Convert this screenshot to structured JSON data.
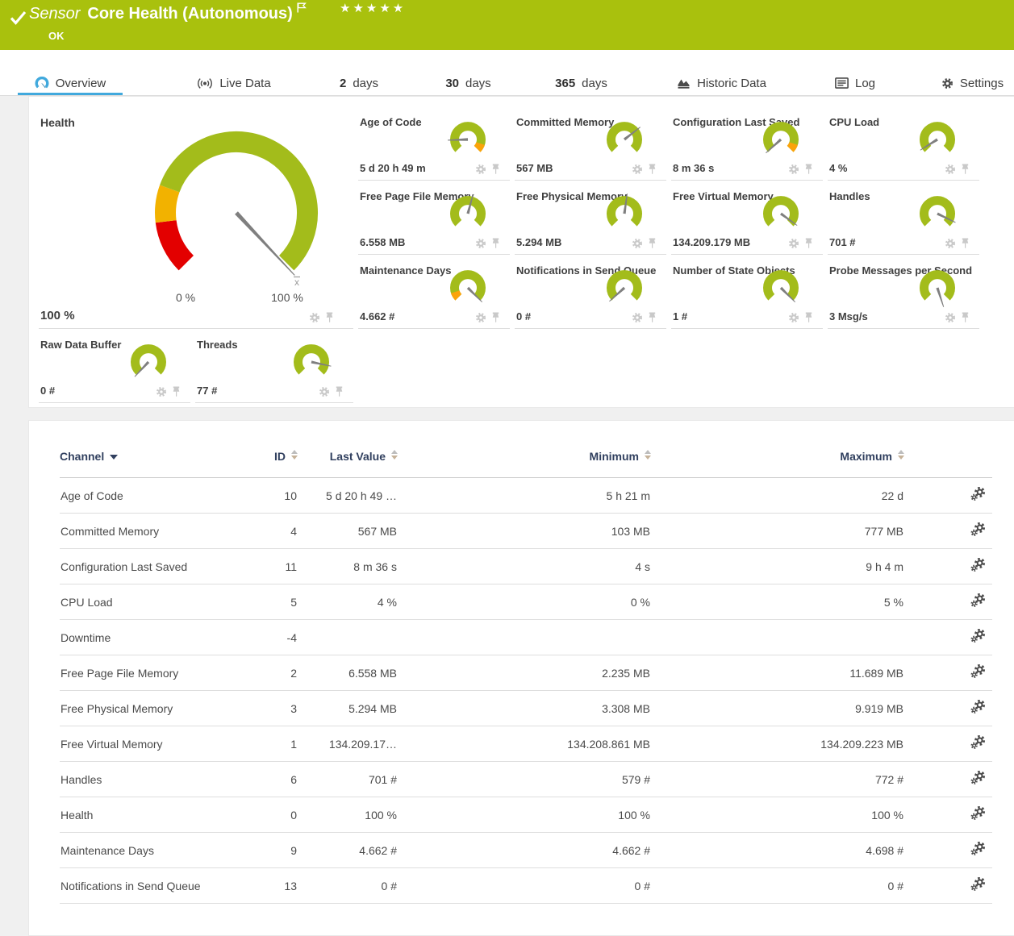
{
  "banner": {
    "sensor_label": "Sensor",
    "title": "Core Health (Autonomous)",
    "status": "OK",
    "stars": "★★★★★"
  },
  "tabs": {
    "overview": "Overview",
    "live": "Live Data",
    "d2n": "2",
    "d2": "days",
    "d30n": "30",
    "d30": "days",
    "d365n": "365",
    "d365": "days",
    "historic": "Historic Data",
    "log": "Log",
    "settings": "Settings"
  },
  "health": {
    "title": "Health",
    "value": "100 %",
    "min_label": "0 %",
    "max_label": "100 %",
    "mean_marker": "x̄",
    "needle_angle": -47
  },
  "gauges": [
    {
      "title": "Age of Code",
      "value": "5 d 20 h 49 m",
      "needle": 182,
      "tip": "end"
    },
    {
      "title": "Committed Memory",
      "value": "567 MB",
      "needle": 38,
      "tip": null
    },
    {
      "title": "Configuration Last Saved",
      "value": "8 m 36 s",
      "needle": 222,
      "tip": "end"
    },
    {
      "title": "CPU Load",
      "value": "4 %",
      "needle": 212,
      "tip": null
    },
    {
      "title": "Free Page File Memory",
      "value": "6.558 MB",
      "needle": 75,
      "tip": null
    },
    {
      "title": "Free Physical Memory",
      "value": "5.294 MB",
      "needle": 82,
      "tip": null
    },
    {
      "title": "Free Virtual Memory",
      "value": "134.209.179 MB",
      "needle": -36,
      "tip": null
    },
    {
      "title": "Handles",
      "value": "701 #",
      "needle": -26,
      "tip": null
    },
    {
      "title": "Maintenance Days",
      "value": "4.662 #",
      "needle": -45,
      "tip": "start"
    },
    {
      "title": "Notifications in Send Queue",
      "value": "0 #",
      "needle": 222,
      "tip": null
    },
    {
      "title": "Number of State Objects",
      "value": "1 #",
      "needle": -45,
      "tip": null
    },
    {
      "title": "Probe Messages per Second",
      "value": "3 Msg/s",
      "needle": -72,
      "tip": null
    },
    {
      "title": "Raw Data Buffer",
      "value": "0 #",
      "needle": 227,
      "tip": null
    },
    {
      "title": "Threads",
      "value": "77 #",
      "needle": -12,
      "tip": null
    }
  ],
  "table": {
    "columns": [
      "Channel",
      "ID",
      "Last Value",
      "Minimum",
      "Maximum"
    ],
    "rows": [
      {
        "channel": "Age of Code",
        "id": "10",
        "last": "5 d 20 h 49 …",
        "min": "5 h 21 m",
        "max": "22 d"
      },
      {
        "channel": "Committed Memory",
        "id": "4",
        "last": "567 MB",
        "min": "103 MB",
        "max": "777 MB"
      },
      {
        "channel": "Configuration Last Saved",
        "id": "11",
        "last": "8 m 36 s",
        "min": "4 s",
        "max": "9 h 4 m"
      },
      {
        "channel": "CPU Load",
        "id": "5",
        "last": "4 %",
        "min": "0 %",
        "max": "5 %"
      },
      {
        "channel": "Downtime",
        "id": "-4",
        "last": "",
        "min": "",
        "max": ""
      },
      {
        "channel": "Free Page File Memory",
        "id": "2",
        "last": "6.558 MB",
        "min": "2.235 MB",
        "max": "11.689 MB"
      },
      {
        "channel": "Free Physical Memory",
        "id": "3",
        "last": "5.294 MB",
        "min": "3.308 MB",
        "max": "9.919 MB"
      },
      {
        "channel": "Free Virtual Memory",
        "id": "1",
        "last": "134.209.17…",
        "min": "134.208.861 MB",
        "max": "134.209.223 MB"
      },
      {
        "channel": "Handles",
        "id": "6",
        "last": "701 #",
        "min": "579 #",
        "max": "772 #"
      },
      {
        "channel": "Health",
        "id": "0",
        "last": "100 %",
        "min": "100 %",
        "max": "100 %"
      },
      {
        "channel": "Maintenance Days",
        "id": "9",
        "last": "4.662 #",
        "min": "4.662 #",
        "max": "4.698 #"
      },
      {
        "channel": "Notifications in Send Queue",
        "id": "13",
        "last": "0 #",
        "min": "0 #",
        "max": "0 #"
      }
    ]
  },
  "colors": {
    "banner_green": "#a9c10d",
    "gauge_green": "#a3bc1b",
    "gauge_yellow": "#f2b200",
    "gauge_red": "#e30000",
    "gauge_orange_tip": "#fba30a",
    "needle_gray": "#7f7f7f",
    "accent_blue": "#41a9dd",
    "icon_gray": "#c9c9c9",
    "icon_dark": "#4a4a4a"
  }
}
